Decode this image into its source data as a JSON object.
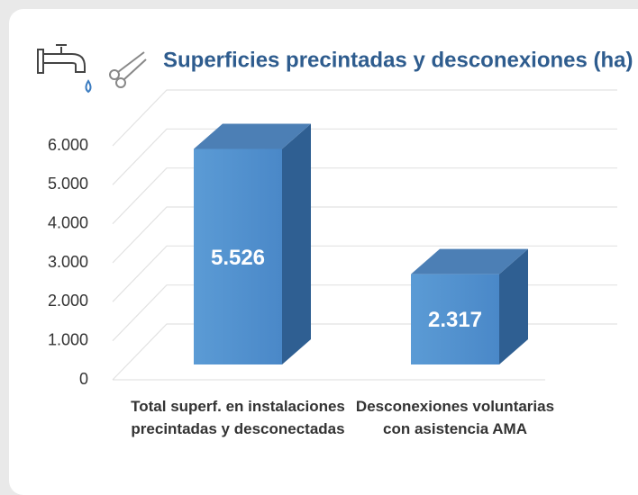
{
  "chart_data": {
    "type": "bar3d",
    "title": "Superficies precintadas y desconexiones (ha)",
    "categories": [
      "Total superf. en instalaciones precintadas y desconectadas",
      "Desconexiones voluntarias con asistencia AMA"
    ],
    "values": [
      5526,
      2317
    ],
    "value_labels": [
      "5.526",
      "2.317"
    ],
    "color": "#5b9bd5",
    "ylim": [
      0,
      6000
    ],
    "yticks": [
      0,
      {
        "value": 1000,
        "label": "1.000"
      },
      {
        "value": 2000,
        "label": "2.000"
      },
      {
        "value": 3000,
        "label": "3.000"
      },
      {
        "value": 4000,
        "label": "4.000"
      },
      {
        "value": 5000,
        "label": "5.000"
      },
      {
        "value": 6000,
        "label": "6.000"
      }
    ],
    "grid": true
  }
}
